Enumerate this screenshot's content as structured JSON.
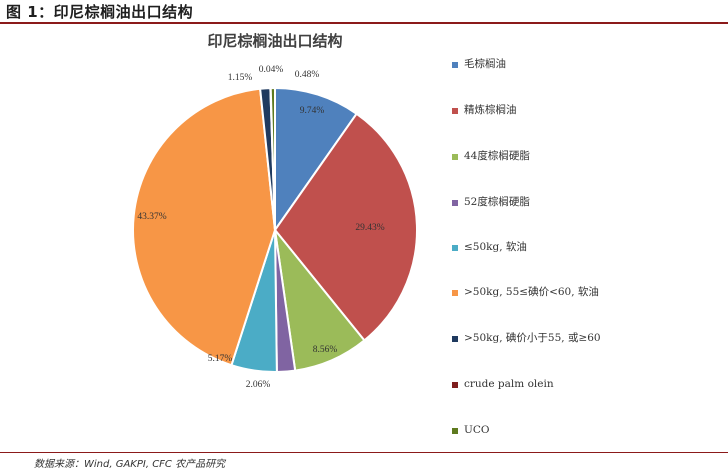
{
  "figure": {
    "header": "图 1：印尼棕榈油出口结构",
    "source": "数据来源：Wind, GAKPI, CFC 农产品研究"
  },
  "chart_data": {
    "type": "pie",
    "title": "印尼棕榈油出口结构",
    "legend_position": "right",
    "slices": [
      {
        "name": "毛棕榈油",
        "value": 9.74,
        "label": "9.74%",
        "color": "#4F81BD"
      },
      {
        "name": "精炼棕榈油",
        "value": 29.43,
        "label": "29.43%",
        "color": "#C0504D"
      },
      {
        "name": "44度棕榈硬脂",
        "value": 8.56,
        "label": "8.56%",
        "color": "#9BBB59"
      },
      {
        "name": "52度棕榈硬脂",
        "value": 2.06,
        "label": "2.06%",
        "color": "#8064A2"
      },
      {
        "name": "≤50kg, 软油",
        "value": 5.17,
        "label": "5.17%",
        "color": "#4BACC6"
      },
      {
        "name": ">50kg, 55≤碘价<60, 软油",
        "value": 43.37,
        "label": "43.37%",
        "color": "#F79646"
      },
      {
        "name": ">50kg, 碘价小于55, 或≥60",
        "value": 1.15,
        "label": "1.15%",
        "color": "#1F3A5F"
      },
      {
        "name": "crude palm olein",
        "value": 0.04,
        "label": "0.04%",
        "color": "#7F1F1F"
      },
      {
        "name": "UCO",
        "value": 0.48,
        "label": "0.48%",
        "color": "#5E7A1F"
      }
    ]
  }
}
